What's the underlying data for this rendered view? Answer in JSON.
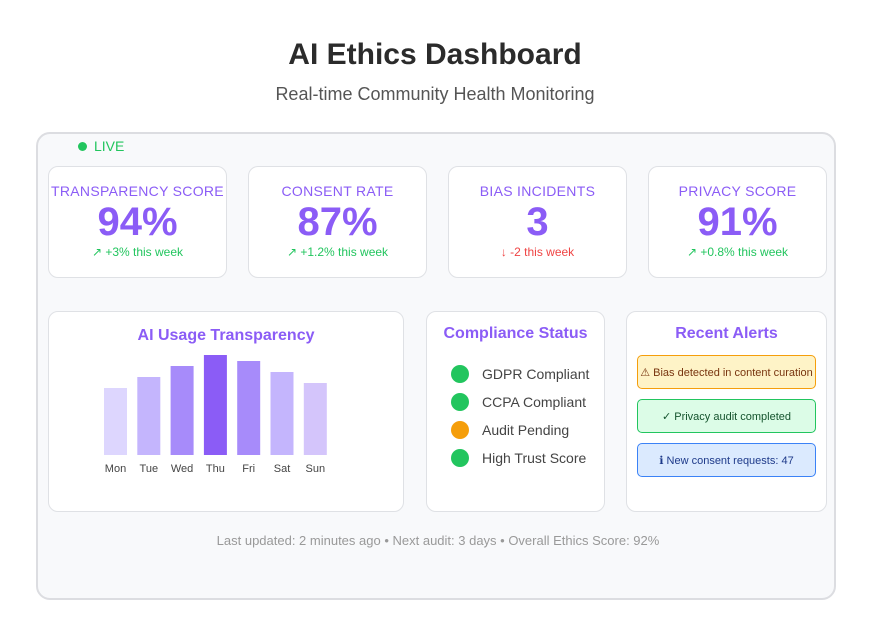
{
  "header": {
    "title": "AI Ethics Dashboard",
    "subtitle": "Real-time Community Health Monitoring"
  },
  "live": {
    "label": "LIVE",
    "color": "#22c55e"
  },
  "metrics": [
    {
      "label": "TRANSPARENCY SCORE",
      "value": "94%",
      "trend": "↗ +3% this week",
      "direction": "up"
    },
    {
      "label": "CONSENT RATE",
      "value": "87%",
      "trend": "↗ +1.2% this week",
      "direction": "up"
    },
    {
      "label": "BIAS INCIDENTS",
      "value": "3",
      "trend": "↓ -2 this week",
      "direction": "down"
    },
    {
      "label": "PRIVACY SCORE",
      "value": "91%",
      "trend": "↗ +0.8% this week",
      "direction": "up"
    }
  ],
  "usage_card": {
    "title": "AI Usage Transparency"
  },
  "chart_data": {
    "type": "bar",
    "title": "AI Usage Transparency",
    "categories": [
      "Mon",
      "Tue",
      "Wed",
      "Thu",
      "Fri",
      "Sat",
      "Sun"
    ],
    "values": [
      67,
      78,
      89,
      100,
      94,
      83,
      72
    ],
    "colors": [
      "#ddd6fe",
      "#c4b5fd",
      "#a78bfa",
      "#8b5cf6",
      "#a78bfa",
      "#c4b5fd",
      "#d4c5fb"
    ],
    "xlabel": "",
    "ylabel": "",
    "ylim": [
      0,
      100
    ],
    "grid": false,
    "legend": "none"
  },
  "compliance": {
    "title": "Compliance Status",
    "items": [
      {
        "label": "GDPR Compliant",
        "color": "#22c55e"
      },
      {
        "label": "CCPA Compliant",
        "color": "#22c55e"
      },
      {
        "label": "Audit Pending",
        "color": "#f59e0b"
      },
      {
        "label": "High Trust Score",
        "color": "#22c55e"
      }
    ]
  },
  "alerts": {
    "title": "Recent Alerts",
    "items": [
      {
        "text": "⚠ Bias detected in content curation",
        "kind": "warn"
      },
      {
        "text": "✓ Privacy audit completed",
        "kind": "ok"
      },
      {
        "text": "ℹ New consent requests: 47",
        "kind": "info"
      }
    ]
  },
  "footer": {
    "text": "Last updated: 2 minutes ago • Next audit: 3 days • Overall Ethics Score: 92%"
  },
  "theme": {
    "accent": "#8b5cf6",
    "positive": "#22c55e",
    "negative": "#ef4444",
    "warning": "#f59e0b"
  }
}
